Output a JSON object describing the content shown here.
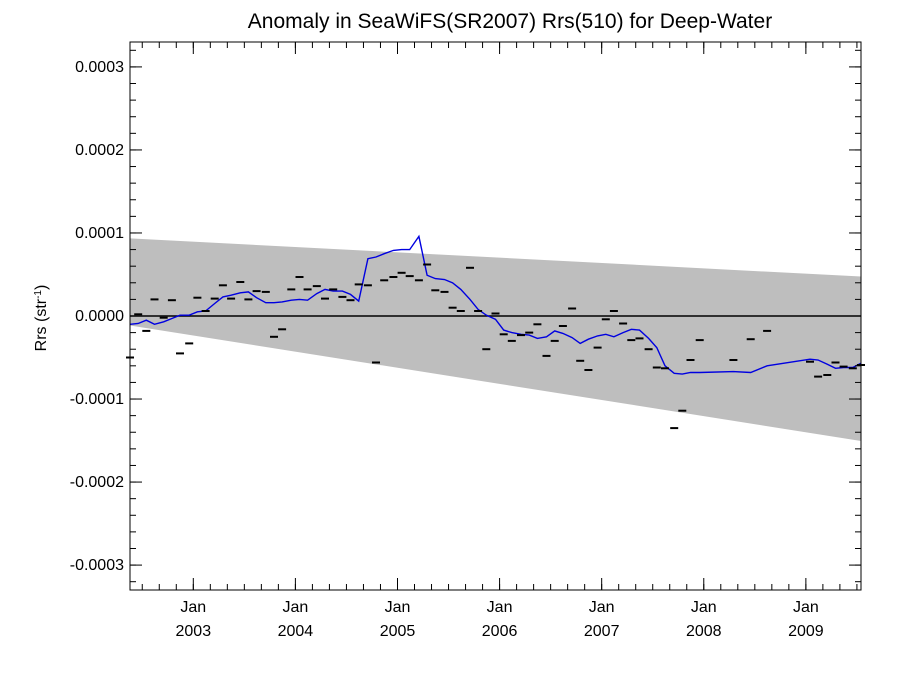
{
  "chart_data": {
    "type": "scatter",
    "title": "Anomaly in SeaWiFS(SR2007) Rrs(510) for Deep-Water",
    "ylabel_main": "Rrs (str",
    "ylabel_sup": "-1",
    "ylabel_end": ")",
    "xlabel": "",
    "xlim": [
      2002.38,
      2009.54
    ],
    "ylim": [
      -0.00033,
      0.00033
    ],
    "grid": false,
    "legend": "none",
    "y_ticks": [
      {
        "value": 0.0003,
        "label": "0.0003"
      },
      {
        "value": 0.0002,
        "label": "0.0002"
      },
      {
        "value": 0.0001,
        "label": "0.0001"
      },
      {
        "value": 0.0,
        "label": "0.0000"
      },
      {
        "value": -0.0001,
        "label": "-0.0001"
      },
      {
        "value": -0.0002,
        "label": "-0.0002"
      },
      {
        "value": -0.0003,
        "label": "-0.0003"
      }
    ],
    "x_ticks": [
      {
        "value": 2003.0,
        "month": "Jan",
        "year": "2003"
      },
      {
        "value": 2004.0,
        "month": "Jan",
        "year": "2004"
      },
      {
        "value": 2005.0,
        "month": "Jan",
        "year": "2005"
      },
      {
        "value": 2006.0,
        "month": "Jan",
        "year": "2006"
      },
      {
        "value": 2007.0,
        "month": "Jan",
        "year": "2007"
      },
      {
        "value": 2008.0,
        "month": "Jan",
        "year": "2008"
      },
      {
        "value": 2009.0,
        "month": "Jan",
        "year": "2009"
      }
    ],
    "zero_line": 0.0,
    "uncertainty_band": {
      "x_start": 2002.38,
      "x_end": 2009.54,
      "upper_start": 9.35e-05,
      "upper_end": 4.75e-05,
      "lower_start": -1.15e-05,
      "lower_end": -0.0001505,
      "color": "#bebebe"
    },
    "series": [
      {
        "kind": "points",
        "color": "#000000",
        "x": [
          2002.38,
          2002.46,
          2002.54,
          2002.62,
          2002.71,
          2002.79,
          2002.87,
          2002.96,
          2003.04,
          2003.12,
          2003.21,
          2003.29,
          2003.37,
          2003.46,
          2003.54,
          2003.62,
          2003.71,
          2003.79,
          2003.87,
          2003.96,
          2004.04,
          2004.12,
          2004.21,
          2004.29,
          2004.37,
          2004.46,
          2004.54,
          2004.62,
          2004.71,
          2004.79,
          2004.87,
          2004.96,
          2005.04,
          2005.12,
          2005.21,
          2005.29,
          2005.37,
          2005.46,
          2005.54,
          2005.62,
          2005.71,
          2005.79,
          2005.87,
          2005.96,
          2006.04,
          2006.12,
          2006.21,
          2006.29,
          2006.37,
          2006.46,
          2006.54,
          2006.62,
          2006.71,
          2006.79,
          2006.87,
          2006.96,
          2007.04,
          2007.12,
          2007.21,
          2007.29,
          2007.37,
          2007.46,
          2007.54,
          2007.62,
          2007.71,
          2007.79,
          2007.87,
          2007.96,
          2008.29,
          2008.46,
          2008.62,
          2009.04,
          2009.12,
          2009.21,
          2009.29,
          2009.37,
          2009.46,
          2009.54
        ],
        "y": [
          -5e-05,
          2e-06,
          -1.8e-05,
          2e-05,
          -2e-06,
          1.9e-05,
          -4.5e-05,
          -3.3e-05,
          2.2e-05,
          6e-06,
          2.1e-05,
          3.7e-05,
          2.1e-05,
          4.1e-05,
          2e-05,
          3e-05,
          2.9e-05,
          -2.5e-05,
          -1.6e-05,
          3.2e-05,
          4.7e-05,
          3.2e-05,
          3.6e-05,
          2.1e-05,
          3.2e-05,
          2.3e-05,
          1.9e-05,
          3.8e-05,
          3.7e-05,
          -5.6e-05,
          4.3e-05,
          4.7e-05,
          5.2e-05,
          4.8e-05,
          4.3e-05,
          6.2e-05,
          3.1e-05,
          2.9e-05,
          1e-05,
          6e-06,
          5.8e-05,
          6e-06,
          -4e-05,
          3e-06,
          -2.2e-05,
          -3e-05,
          -2.3e-05,
          -2e-05,
          -1e-05,
          -4.8e-05,
          -3e-05,
          -1.2e-05,
          9e-06,
          -5.4e-05,
          -6.5e-05,
          -3.8e-05,
          -4e-06,
          6e-06,
          -9e-06,
          -2.9e-05,
          -2.7e-05,
          -4e-05,
          -6.2e-05,
          -6.3e-05,
          -0.000135,
          -0.000114,
          -5.3e-05,
          -2.9e-05,
          -5.3e-05,
          -2.8e-05,
          -1.8e-05,
          -5.5e-05,
          -7.3e-05,
          -7.1e-05,
          -5.6e-05,
          -6.1e-05,
          -6.3e-05,
          -5.9e-05
        ]
      },
      {
        "kind": "line",
        "color": "#0000e0",
        "x": [
          2002.38,
          2002.46,
          2002.54,
          2002.62,
          2002.71,
          2002.79,
          2002.87,
          2002.96,
          2003.04,
          2003.12,
          2003.21,
          2003.29,
          2003.37,
          2003.46,
          2003.54,
          2003.62,
          2003.71,
          2003.79,
          2003.87,
          2003.96,
          2004.04,
          2004.12,
          2004.21,
          2004.29,
          2004.37,
          2004.46,
          2004.54,
          2004.62,
          2004.71,
          2004.79,
          2004.87,
          2004.96,
          2005.04,
          2005.12,
          2005.21,
          2005.29,
          2005.37,
          2005.46,
          2005.54,
          2005.62,
          2005.71,
          2005.79,
          2005.87,
          2005.96,
          2006.04,
          2006.12,
          2006.21,
          2006.29,
          2006.37,
          2006.46,
          2006.54,
          2006.62,
          2006.71,
          2006.79,
          2006.87,
          2006.96,
          2007.04,
          2007.12,
          2007.21,
          2007.29,
          2007.37,
          2007.46,
          2007.54,
          2007.62,
          2007.71,
          2007.79,
          2007.87,
          2007.96,
          2008.29,
          2008.46,
          2008.62,
          2009.04,
          2009.12,
          2009.21,
          2009.29,
          2009.37,
          2009.46,
          2009.54
        ],
        "y": [
          -1e-05,
          -9e-06,
          -5e-06,
          -1e-05,
          -7e-06,
          -3e-06,
          1e-06,
          1e-06,
          5e-06,
          6e-06,
          1.5e-05,
          2.3e-05,
          2.5e-05,
          2.8e-05,
          2.9e-05,
          2.2e-05,
          1.6e-05,
          1.6e-05,
          1.7e-05,
          1.9e-05,
          2e-05,
          1.9e-05,
          2.7e-05,
          3.2e-05,
          3e-05,
          3e-05,
          2.6e-05,
          1.8e-05,
          6.9e-05,
          7.1e-05,
          7.5e-05,
          7.9e-05,
          8e-05,
          8e-05,
          9.6e-05,
          4.9e-05,
          4.5e-05,
          4.4e-05,
          4e-05,
          3.2e-05,
          2e-05,
          8e-06,
          1e-06,
          -4e-06,
          -1.7e-05,
          -2e-05,
          -2.2e-05,
          -2.3e-05,
          -2.7e-05,
          -2.5e-05,
          -1.8e-05,
          -2.1e-05,
          -2.6e-05,
          -3.3e-05,
          -2.8e-05,
          -2.4e-05,
          -2.2e-05,
          -2.5e-05,
          -2e-05,
          -1.6e-05,
          -1.7e-05,
          -2.7e-05,
          -3.8e-05,
          -6e-05,
          -6.9e-05,
          -7e-05,
          -6.8e-05,
          -6.8e-05,
          -6.7e-05,
          -6.8e-05,
          -6e-05,
          -5.2e-05,
          -5.3e-05,
          -5.8e-05,
          -6.3e-05,
          -6.2e-05,
          -6.2e-05,
          -5.7e-05
        ]
      }
    ]
  }
}
